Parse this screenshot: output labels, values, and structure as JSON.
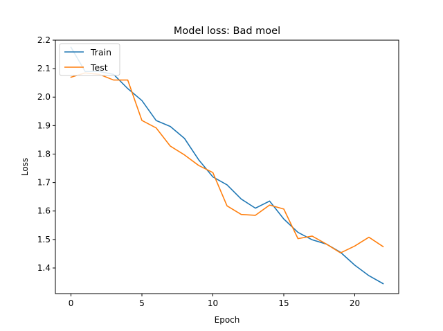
{
  "chart_data": {
    "type": "line",
    "title": "Model loss: Bad moel",
    "xlabel": "Epoch",
    "ylabel": "Loss",
    "xlim": [
      -1.1,
      23.1
    ],
    "ylim": [
      1.31,
      2.2
    ],
    "xticks": [
      0,
      5,
      10,
      15,
      20
    ],
    "yticks": [
      1.4,
      1.5,
      1.6,
      1.7,
      1.8,
      1.9,
      2.0,
      2.1,
      2.2
    ],
    "ytick_labels": [
      "1.4",
      "1.5",
      "1.6",
      "1.7",
      "1.8",
      "1.9",
      "2.0",
      "2.1",
      "2.2"
    ],
    "grid": false,
    "legend_position": "top-left",
    "x": [
      0,
      1,
      2,
      3,
      4,
      5,
      6,
      7,
      8,
      9,
      10,
      11,
      12,
      13,
      14,
      15,
      16,
      17,
      18,
      19,
      20,
      21,
      22
    ],
    "series": [
      {
        "name": "Train",
        "color": "#1f77b4",
        "values": [
          2.175,
          2.09,
          2.09,
          2.08,
          2.03,
          1.988,
          1.918,
          1.897,
          1.855,
          1.78,
          1.72,
          1.692,
          1.642,
          1.61,
          1.635,
          1.572,
          1.525,
          1.499,
          1.484,
          1.455,
          1.41,
          1.373,
          1.345
        ]
      },
      {
        "name": "Test",
        "color": "#ff7f0e",
        "values": [
          2.07,
          2.085,
          2.08,
          2.06,
          2.06,
          1.918,
          1.892,
          1.828,
          1.797,
          1.76,
          1.735,
          1.618,
          1.588,
          1.585,
          1.621,
          1.607,
          1.503,
          1.512,
          1.484,
          1.453,
          1.477,
          1.508,
          1.475
        ]
      }
    ]
  }
}
